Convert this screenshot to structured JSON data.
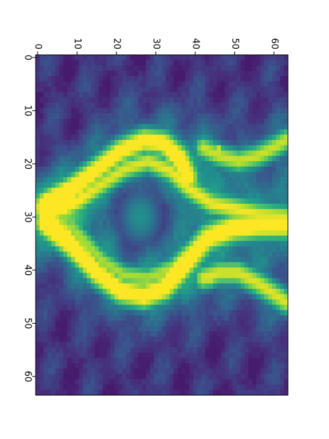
{
  "chart_data": {
    "type": "heatmap",
    "orientation": "rotated-90-clockwise",
    "colormap": "viridis",
    "grid": false,
    "legend": "none",
    "title": "",
    "xlabel": "",
    "ylabel": "",
    "shape": [
      64,
      64
    ],
    "top_axis": {
      "ticks": [
        0,
        10,
        20,
        30,
        40,
        50,
        60
      ],
      "labels": [
        "0",
        "10",
        "20",
        "30",
        "40",
        "50",
        "60"
      ],
      "range": [
        -0.5,
        63.5
      ]
    },
    "left_axis": {
      "ticks": [
        0,
        10,
        20,
        30,
        40,
        50,
        60
      ],
      "labels": [
        "0",
        "10",
        "20",
        "30",
        "40",
        "50",
        "60"
      ],
      "range": [
        -0.5,
        63.5
      ]
    },
    "value_range": [
      0,
      1
    ],
    "background_level": 0.15,
    "structures": [
      {
        "name": "outer-left-arc",
        "points": [
          [
            2,
            28
          ],
          [
            8,
            25
          ],
          [
            15,
            21
          ],
          [
            21,
            17.5
          ],
          [
            27,
            15.5
          ],
          [
            32,
            16
          ],
          [
            36,
            19
          ],
          [
            38,
            22.5
          ]
        ],
        "width": 1.9,
        "intensity": 0.9
      },
      {
        "name": "outer-right-arc",
        "points": [
          [
            2,
            31
          ],
          [
            8,
            35
          ],
          [
            15,
            40.5
          ],
          [
            21,
            44
          ],
          [
            27,
            45
          ],
          [
            32,
            43.5
          ],
          [
            37,
            39
          ],
          [
            43,
            34
          ],
          [
            50,
            32
          ],
          [
            56,
            31.5
          ],
          [
            63,
            31.5
          ]
        ],
        "width": 2.0,
        "intensity": 0.92
      },
      {
        "name": "inner-left-arc",
        "points": [
          [
            4,
            29
          ],
          [
            10,
            27
          ],
          [
            16,
            24
          ],
          [
            22,
            21
          ],
          [
            28,
            19.5
          ],
          [
            34,
            21.5
          ],
          [
            38,
            24.5
          ],
          [
            44,
            27.5
          ],
          [
            50,
            28.5
          ],
          [
            56,
            29.5
          ],
          [
            63,
            30
          ]
        ],
        "width": 1.8,
        "intensity": 0.88
      },
      {
        "name": "inner-right-arc",
        "points": [
          [
            4,
            30
          ],
          [
            10,
            33
          ],
          [
            16,
            38
          ],
          [
            22,
            41
          ],
          [
            28,
            41.5
          ],
          [
            33,
            40
          ]
        ],
        "width": 1.7,
        "intensity": 0.8
      },
      {
        "name": "lower-left-lobe",
        "points": [
          [
            42,
            17
          ],
          [
            46,
            18.5
          ],
          [
            51,
            19.5
          ],
          [
            56,
            18.5
          ],
          [
            61,
            16.5
          ],
          [
            63,
            15.5
          ]
        ],
        "width": 1.8,
        "intensity": 0.85
      },
      {
        "name": "lower-right-lobe",
        "points": [
          [
            42,
            41.5
          ],
          [
            46,
            40.5
          ],
          [
            51,
            40.5
          ],
          [
            56,
            42.5
          ],
          [
            61,
            45
          ],
          [
            63,
            46
          ]
        ],
        "width": 1.9,
        "intensity": 0.88
      }
    ],
    "blobs": [
      {
        "name": "center-glow",
        "center": [
          26,
          30
        ],
        "radius": 4.5,
        "intensity": 0.5
      },
      {
        "name": "left-hotspot",
        "center": [
          37.5,
          21
        ],
        "radius": 1.2,
        "intensity": 1.0
      },
      {
        "name": "lower-left-hotspot",
        "center": [
          46,
          17.5
        ],
        "radius": 1.2,
        "intensity": 1.0
      },
      {
        "name": "lower-right-hotspot",
        "center": [
          43.5,
          42
        ],
        "radius": 1.2,
        "intensity": 1.0
      }
    ]
  }
}
